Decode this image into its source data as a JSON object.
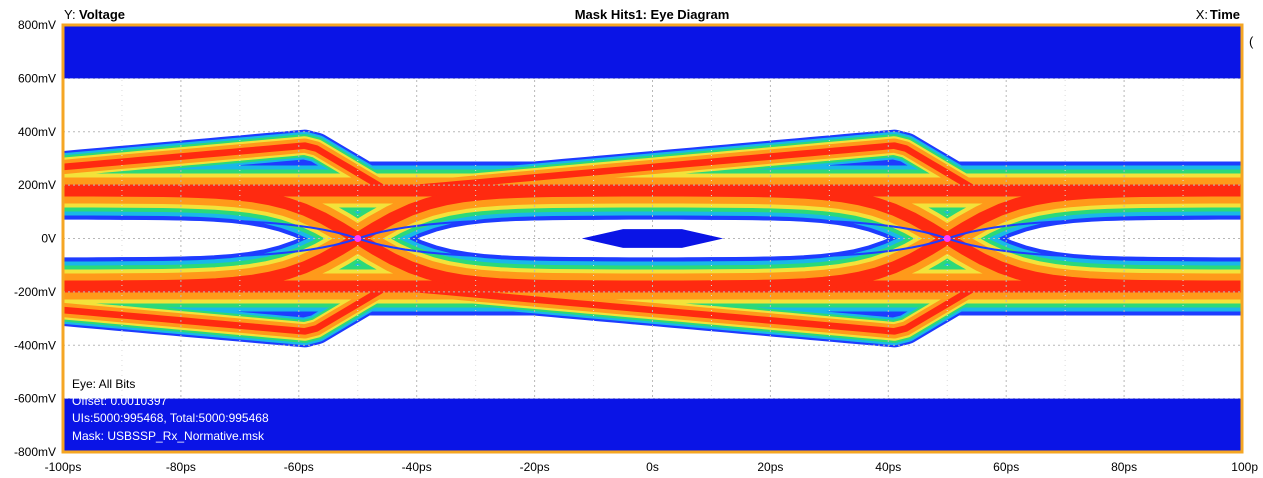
{
  "header": {
    "y_prefix": "Y:",
    "y_label": "Voltage",
    "title": "Mask Hits1: Eye Diagram",
    "x_prefix": "X:",
    "x_label": "Time"
  },
  "info": {
    "eye": "Eye: All Bits",
    "offset": "Offset: 0.0010397",
    "uis": "UIs:5000:995468, Total:5000:995468",
    "mask": "Mask: USBSSP_Rx_Normative.msk"
  },
  "colors": {
    "frame": "#f5a623",
    "mask": "#0a14e6",
    "grid": "#b8b8b8",
    "hot": "#ff2a10",
    "warm": "#ff9a1a",
    "mid": "#f3e23a",
    "cool": "#2bd97a",
    "cold": "#19b8e8",
    "edge": "#1e3cff"
  },
  "chart_data": {
    "type": "heatmap",
    "title": "Mask Hits1: Eye Diagram",
    "xlabel": "Time",
    "ylabel": "Voltage",
    "xlim": [
      -100,
      100
    ],
    "ylim": [
      -800,
      800
    ],
    "x_unit": "ps",
    "y_unit": "mV",
    "x_ticks": [
      -100,
      -80,
      -60,
      -40,
      -20,
      0,
      20,
      40,
      60,
      80,
      100
    ],
    "x_tick_labels": [
      "-100ps",
      "-80ps",
      "-60ps",
      "-40ps",
      "-20ps",
      "0s",
      "20ps",
      "40ps",
      "60ps",
      "80ps",
      "100p"
    ],
    "y_ticks": [
      800,
      600,
      400,
      200,
      0,
      -200,
      -400,
      -600,
      -800
    ],
    "y_tick_labels": [
      "800mV",
      "600mV",
      "400mV",
      "200mV",
      "0V",
      "-200mV",
      "-400mV",
      "-600mV",
      "-800mV"
    ],
    "grid": true,
    "mask_regions": [
      {
        "name": "top",
        "x": [
          -100,
          100
        ],
        "y": [
          600,
          800
        ]
      },
      {
        "name": "bottom",
        "x": [
          -100,
          100
        ],
        "y": [
          -800,
          -600
        ]
      },
      {
        "name": "center",
        "polygon": [
          [
            -12,
            0
          ],
          [
            -5,
            35
          ],
          [
            5,
            35
          ],
          [
            12,
            0
          ],
          [
            5,
            -35
          ],
          [
            -5,
            -35
          ]
        ]
      }
    ],
    "crossing_points": [
      [
        -50,
        0
      ],
      [
        50,
        0
      ]
    ],
    "levels": {
      "high": 180,
      "low": -180,
      "overshoot": 350,
      "undershoot": -350
    }
  }
}
